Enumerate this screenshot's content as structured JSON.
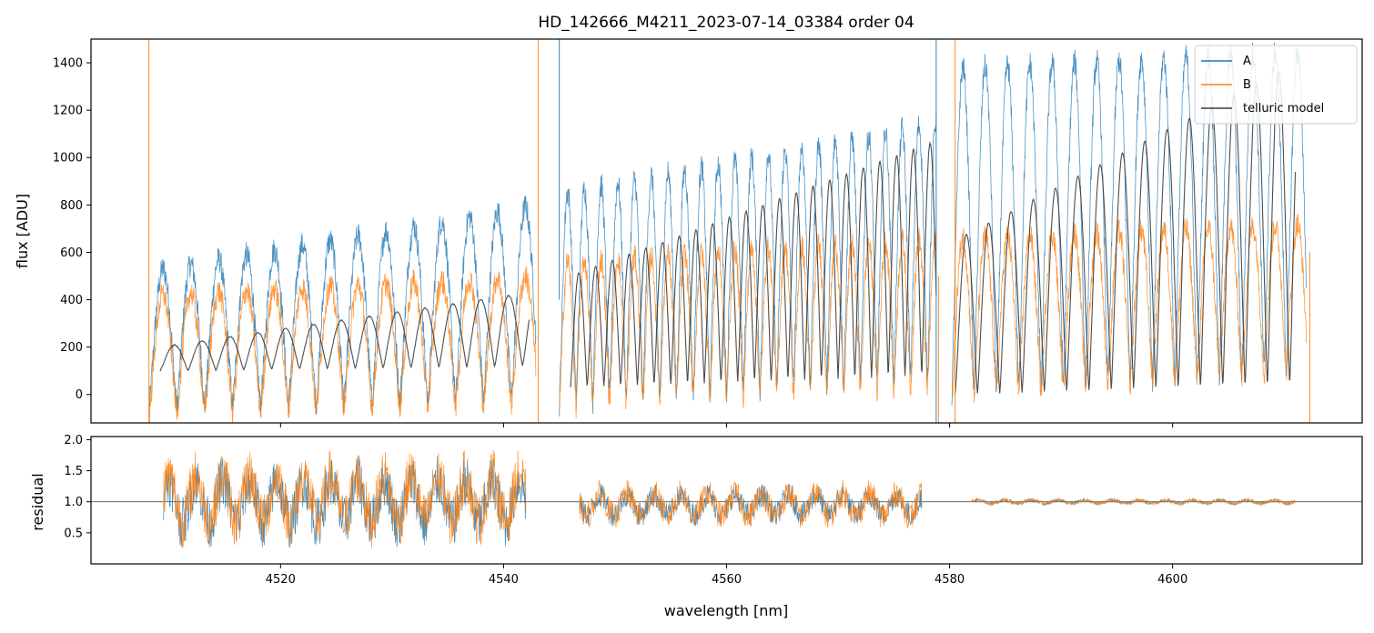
{
  "chart_data": [
    {
      "type": "line",
      "title": "HD_142666_M4211_2023-07-14_03384  order 04",
      "xlabel": "",
      "ylabel": "flux [ADU]",
      "xlim": [
        4503,
        4617
      ],
      "ylim": [
        -120,
        1500
      ],
      "xticks": [
        4520,
        4540,
        4560,
        4580,
        4600
      ],
      "yticks": [
        0,
        200,
        400,
        600,
        800,
        1000,
        1200,
        1400
      ],
      "ytick_labels": [
        "0",
        "200",
        "400",
        "600",
        "800",
        "1000",
        "1200",
        "1400"
      ],
      "legend": {
        "location": "top-right",
        "entries": [
          {
            "label": "A",
            "color": "#1f77b4"
          },
          {
            "label": "B",
            "color": "#ff7f0e"
          },
          {
            "label": "telluric model",
            "color": "#3a3a3a"
          }
        ]
      },
      "series": [
        {
          "name": "A",
          "color": "#1f77b4",
          "segments": [
            {
              "x_range": [
                4508.2,
                4542.9
              ],
              "line_period": 2.5,
              "peak": [
                520,
                800
              ],
              "trough": [
                -60,
                -20
              ]
            },
            {
              "x_range": [
                4545.0,
                4578.8
              ],
              "line_period": 1.5,
              "peak": [
                850,
                1150
              ],
              "trough": [
                -40,
                60
              ]
            },
            {
              "x_range": [
                4580.2,
                4612.0
              ],
              "line_period": 2.0,
              "peak": [
                1380,
                1450
              ],
              "trough": [
                0,
                100
              ]
            }
          ]
        },
        {
          "name": "B",
          "color": "#ff7f0e",
          "segments": [
            {
              "x_range": [
                4508.2,
                4542.9
              ],
              "line_period": 2.5,
              "peak": [
                420,
                500
              ],
              "trough": [
                -90,
                -40
              ]
            },
            {
              "x_range": [
                4545.0,
                4578.8
              ],
              "line_period": 1.5,
              "peak": [
                560,
                660
              ],
              "trough": [
                -50,
                20
              ]
            },
            {
              "x_range": [
                4580.2,
                4612.0
              ],
              "line_period": 2.0,
              "peak": [
                660,
                720
              ],
              "trough": [
                -20,
                100
              ]
            }
          ]
        },
        {
          "name": "telluric model",
          "color": "#3a3a3a",
          "segments": [
            {
              "x_range": [
                4509.2,
                4542.3
              ],
              "line_period": 2.5,
              "peak": [
                200,
                430
              ],
              "trough": [
                100,
                120
              ]
            },
            {
              "x_range": [
                4546.0,
                4578.8
              ],
              "line_period": 1.5,
              "peak": [
                500,
                1070
              ],
              "trough": [
                30,
                80
              ]
            },
            {
              "x_range": [
                4580.5,
                4611.0
              ],
              "line_period": 2.0,
              "peak": [
                650,
                1400
              ],
              "trough": [
                0,
                40
              ]
            }
          ]
        }
      ]
    },
    {
      "type": "line",
      "title": "",
      "xlabel": "wavelength [nm]",
      "ylabel": "residual",
      "xlim": [
        4503,
        4617
      ],
      "ylim": [
        0,
        2.05
      ],
      "xticks": [
        4520,
        4540,
        4560,
        4580,
        4600
      ],
      "xtick_labels": [
        "4520",
        "4540",
        "4560",
        "4580",
        "4600"
      ],
      "yticks": [
        0.5,
        1.0,
        1.5,
        2.0
      ],
      "ytick_labels": [
        "0.5",
        "1.0",
        "1.5",
        "2.0"
      ],
      "reference_line": 1.0,
      "series": [
        {
          "name": "A",
          "color": "#1f77b4",
          "segments": [
            {
              "x_range": [
                4509.5,
                4542.0
              ],
              "mean": 1.0,
              "spread": 0.75
            },
            {
              "x_range": [
                4546.8,
                4577.5
              ],
              "mean": 0.95,
              "spread": 0.35
            },
            {
              "x_range": [
                4582.0,
                4611.0
              ],
              "mean": 1.0,
              "spread": 0.05
            }
          ]
        },
        {
          "name": "B",
          "color": "#ff7f0e",
          "segments": [
            {
              "x_range": [
                4509.5,
                4542.0
              ],
              "mean": 1.05,
              "spread": 0.8
            },
            {
              "x_range": [
                4546.8,
                4577.5
              ],
              "mean": 0.95,
              "spread": 0.4
            },
            {
              "x_range": [
                4582.0,
                4611.0
              ],
              "mean": 1.0,
              "spread": 0.06
            }
          ]
        }
      ]
    }
  ]
}
